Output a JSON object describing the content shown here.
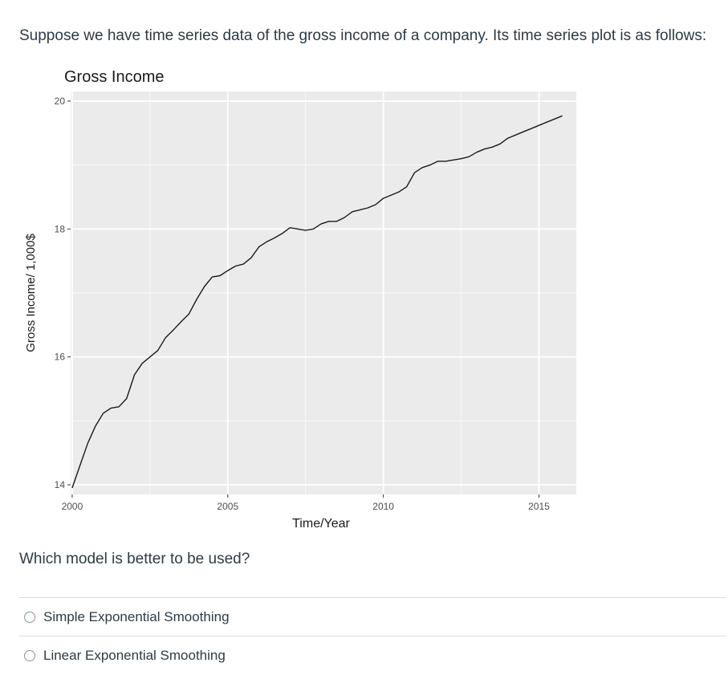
{
  "question": {
    "intro": "Suppose we have time series data of the gross income of a company. Its time series plot is as follows:",
    "prompt": "Which model is better to be used?"
  },
  "answers": [
    {
      "label": "Simple Exponential Smoothing",
      "selected": false
    },
    {
      "label": "Linear Exponential Smoothing",
      "selected": false
    }
  ],
  "colors": {
    "panel": "#ebebeb",
    "grid": "#ffffff",
    "line": "#1a1a1a",
    "text": "#2d3b45"
  },
  "chart_data": {
    "type": "line",
    "title": "Gross Income",
    "xlabel": "Time/Year",
    "ylabel": "Gross Income/ 1,000$",
    "xlim": [
      1999.95,
      2016.2
    ],
    "ylim": [
      13.85,
      20.15
    ],
    "x_ticks": [
      "2000",
      "2005",
      "2010",
      "2015"
    ],
    "y_ticks": [
      "14",
      "16",
      "18",
      "20"
    ],
    "grid": true,
    "series": [
      {
        "x": [
          2000.0,
          2000.25,
          2000.5,
          2000.75,
          2001.0,
          2001.25,
          2001.5,
          2001.75,
          2002.0,
          2002.25,
          2002.5,
          2002.75,
          2003.0,
          2003.25,
          2003.5,
          2003.75,
          2004.0,
          2004.25,
          2004.5,
          2004.75,
          2005.0,
          2005.25,
          2005.5,
          2005.75,
          2006.0,
          2006.25,
          2006.5,
          2006.75,
          2007.0,
          2007.25,
          2007.5,
          2007.75,
          2008.0,
          2008.25,
          2008.5,
          2008.75,
          2009.0,
          2009.25,
          2009.5,
          2009.75,
          2010.0,
          2010.25,
          2010.5,
          2010.75,
          2011.0,
          2011.25,
          2011.5,
          2011.75,
          2012.0,
          2012.25,
          2012.5,
          2012.75,
          2013.0,
          2013.25,
          2013.5,
          2013.75,
          2014.0,
          2014.25,
          2014.5,
          2014.75,
          2015.0,
          2015.25,
          2015.5,
          2015.75
        ],
        "values": [
          13.95,
          14.3,
          14.65,
          14.92,
          15.12,
          15.2,
          15.22,
          15.35,
          15.72,
          15.9,
          16.0,
          16.1,
          16.3,
          16.42,
          16.55,
          16.67,
          16.9,
          17.1,
          17.25,
          17.27,
          17.35,
          17.42,
          17.45,
          17.55,
          17.72,
          17.8,
          17.86,
          17.93,
          18.02,
          18.0,
          17.98,
          18.0,
          18.08,
          18.12,
          18.12,
          18.18,
          18.27,
          18.3,
          18.33,
          18.38,
          18.48,
          18.53,
          18.58,
          18.66,
          18.88,
          18.96,
          19.0,
          19.06,
          19.06,
          19.08,
          19.1,
          19.13,
          19.2,
          19.25,
          19.28,
          19.33,
          19.42,
          19.47,
          19.52,
          19.57,
          19.62,
          19.67,
          19.72,
          19.77
        ]
      }
    ]
  }
}
